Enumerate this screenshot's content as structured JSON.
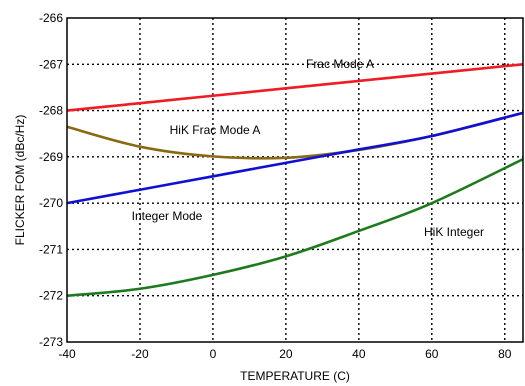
{
  "chart_data": {
    "type": "line",
    "xlabel": "TEMPERATURE (C)",
    "ylabel": "FLICKER FOM (dBc/Hz)",
    "xlim": [
      -40,
      85
    ],
    "ylim": [
      -273,
      -266
    ],
    "x_ticks": [
      "-40",
      "-20",
      "0",
      "20",
      "40",
      "60",
      "80"
    ],
    "y_ticks": [
      "-266",
      "-267",
      "-268",
      "-269",
      "-270",
      "-271",
      "-272",
      "-273"
    ],
    "grid": true,
    "grid_style": "dotted",
    "series": [
      {
        "name": "Frac Mode A",
        "color": "#ee1c24",
        "x": [
          -40,
          -20,
          0,
          20,
          40,
          60,
          85
        ],
        "y": [
          -268.0,
          -267.84,
          -267.68,
          -267.52,
          -267.36,
          -267.2,
          -267.0
        ]
      },
      {
        "name": "HiK Frac Mode A",
        "color": "#8b6914",
        "x": [
          -40,
          -20,
          0,
          20,
          40,
          60,
          85
        ],
        "y": [
          -268.35,
          -268.78,
          -268.99,
          -269.02,
          -268.85,
          -268.55,
          -268.05
        ]
      },
      {
        "name": "Integer Mode",
        "color": "#1010d0",
        "x": [
          -40,
          -20,
          0,
          20,
          40,
          60,
          85
        ],
        "y": [
          -270.0,
          -269.71,
          -269.42,
          -269.13,
          -268.84,
          -268.55,
          -268.05
        ]
      },
      {
        "name": "HiK Integer",
        "color": "#1f7a1f",
        "x": [
          -40,
          -20,
          0,
          20,
          40,
          60,
          85
        ],
        "y": [
          -272.0,
          -271.85,
          -271.55,
          -271.15,
          -270.6,
          -270.0,
          -269.05
        ]
      }
    ]
  }
}
